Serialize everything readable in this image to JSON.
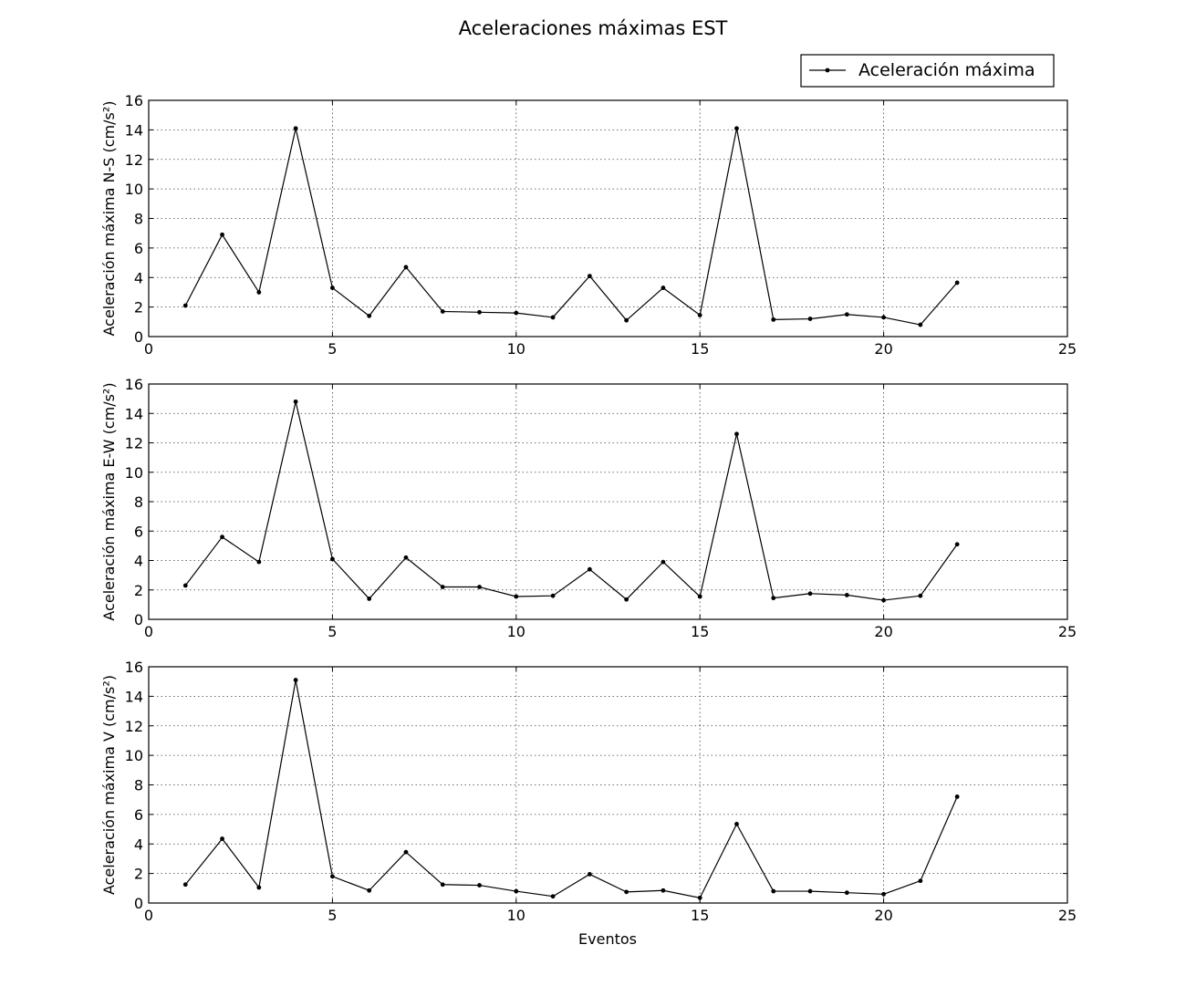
{
  "figure": {
    "title": "Aceleraciones máximas EST",
    "xlabel": "Eventos",
    "legend": {
      "label": "Aceleración máxima",
      "placement": "top-right"
    },
    "line_color": "#000000"
  },
  "chart_data": [
    {
      "type": "line",
      "title": "",
      "ylabel": "Aceleración máxima N-S (cm/s²)",
      "xlabel": "",
      "grid": true,
      "xlim": [
        0,
        25
      ],
      "ylim": [
        0,
        16
      ],
      "xticks": [
        0,
        5,
        10,
        15,
        20,
        25
      ],
      "yticks": [
        0,
        2,
        4,
        6,
        8,
        10,
        12,
        14,
        16
      ],
      "x": [
        1,
        2,
        3,
        4,
        5,
        6,
        7,
        8,
        9,
        10,
        11,
        12,
        13,
        14,
        15,
        16,
        17,
        18,
        19,
        20,
        21,
        22
      ],
      "series": [
        {
          "name": "Aceleración máxima",
          "values": [
            2.1,
            6.9,
            3.0,
            14.1,
            3.3,
            1.4,
            4.7,
            1.7,
            1.65,
            1.6,
            1.3,
            4.1,
            1.1,
            3.3,
            1.45,
            14.1,
            1.15,
            1.2,
            1.5,
            1.3,
            0.8,
            3.65
          ]
        }
      ]
    },
    {
      "type": "line",
      "title": "",
      "ylabel": "Aceleración máxima E-W (cm/s²)",
      "xlabel": "",
      "grid": true,
      "xlim": [
        0,
        25
      ],
      "ylim": [
        0,
        16
      ],
      "xticks": [
        0,
        5,
        10,
        15,
        20,
        25
      ],
      "yticks": [
        0,
        2,
        4,
        6,
        8,
        10,
        12,
        14,
        16
      ],
      "x": [
        1,
        2,
        3,
        4,
        5,
        6,
        7,
        8,
        9,
        10,
        11,
        12,
        13,
        14,
        15,
        16,
        17,
        18,
        19,
        20,
        21,
        22
      ],
      "series": [
        {
          "name": "Aceleración máxima",
          "values": [
            2.3,
            5.6,
            3.9,
            14.8,
            4.1,
            1.4,
            4.2,
            2.2,
            2.2,
            1.55,
            1.6,
            3.4,
            1.35,
            3.9,
            1.55,
            12.6,
            1.45,
            1.75,
            1.65,
            1.3,
            1.6,
            5.1
          ]
        }
      ]
    },
    {
      "type": "line",
      "title": "",
      "ylabel": "Aceleración máxima V (cm/s²)",
      "xlabel": "Eventos",
      "grid": true,
      "xlim": [
        0,
        25
      ],
      "ylim": [
        0,
        16
      ],
      "xticks": [
        0,
        5,
        10,
        15,
        20,
        25
      ],
      "yticks": [
        0,
        2,
        4,
        6,
        8,
        10,
        12,
        14,
        16
      ],
      "x": [
        1,
        2,
        3,
        4,
        5,
        6,
        7,
        8,
        9,
        10,
        11,
        12,
        13,
        14,
        15,
        16,
        17,
        18,
        19,
        20,
        21,
        22
      ],
      "series": [
        {
          "name": "Aceleración máxima",
          "values": [
            1.25,
            4.35,
            1.05,
            15.1,
            1.8,
            0.85,
            3.45,
            1.25,
            1.2,
            0.8,
            0.45,
            1.95,
            0.75,
            0.85,
            0.35,
            5.35,
            0.8,
            0.8,
            0.7,
            0.6,
            1.5,
            7.2
          ]
        }
      ]
    }
  ]
}
